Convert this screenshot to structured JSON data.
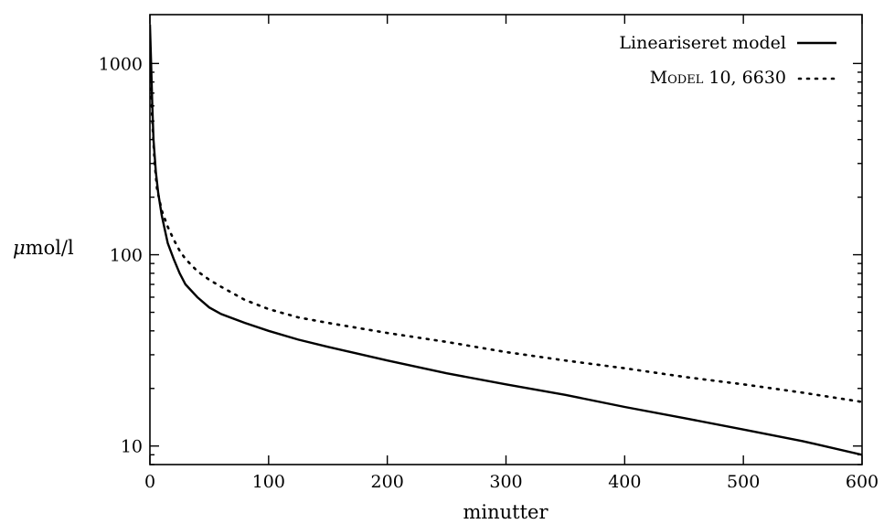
{
  "chart_data": {
    "type": "line",
    "xlabel": "minutter",
    "ylabel": "μmol/l",
    "ylabel_mu": "μ",
    "ylabel_rest": "mol/l",
    "xlim": [
      0,
      600
    ],
    "ylim": [
      8,
      1800
    ],
    "yscale": "log",
    "x_ticks": [
      0,
      100,
      200,
      300,
      400,
      500,
      600
    ],
    "x_tick_labels": [
      "0",
      "100",
      "200",
      "300",
      "400",
      "500",
      "600"
    ],
    "y_ticks": [
      10,
      100,
      1000
    ],
    "y_tick_labels": [
      "10",
      "100",
      "1000"
    ],
    "legend_position": "top-right",
    "series": [
      {
        "name": "Lineariseret model",
        "style": "solid",
        "color": "#000000",
        "x": [
          0,
          1,
          2,
          3,
          5,
          7,
          10,
          15,
          20,
          25,
          30,
          40,
          50,
          60,
          80,
          100,
          125,
          150,
          200,
          250,
          300,
          350,
          400,
          450,
          500,
          550,
          600
        ],
        "y": [
          1600,
          1000,
          600,
          400,
          270,
          210,
          160,
          115,
          95,
          80,
          70,
          60,
          53,
          49,
          44,
          40,
          36,
          33,
          28,
          24,
          21,
          18.5,
          16,
          14,
          12.2,
          10.6,
          9
        ]
      },
      {
        "name": "Model 10, 6630",
        "style": "dotted",
        "color": "#000000",
        "x": [
          0,
          2,
          4,
          6,
          10,
          15,
          20,
          25,
          30,
          40,
          50,
          60,
          80,
          100,
          125,
          150,
          200,
          250,
          300,
          350,
          400,
          450,
          500,
          550,
          600
        ],
        "y": [
          1100,
          500,
          300,
          220,
          170,
          140,
          120,
          105,
          95,
          82,
          74,
          68,
          58,
          52,
          47,
          44,
          39,
          35,
          31,
          28,
          25.5,
          23,
          21,
          19,
          17
        ]
      }
    ]
  }
}
